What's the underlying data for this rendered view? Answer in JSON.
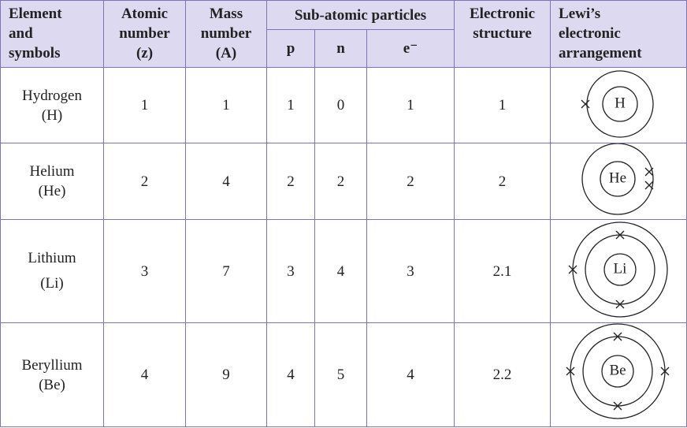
{
  "header": {
    "element": [
      "Element",
      "and",
      "symbols"
    ],
    "atomic": [
      "Atomic",
      "number",
      "(z)"
    ],
    "mass": [
      "Mass",
      "number",
      "(A)"
    ],
    "subatomic": "Sub-atomic particles",
    "p": "p",
    "n": "n",
    "e": "e⁻",
    "structure": [
      "Electronic",
      "structure"
    ],
    "lewis": [
      "Lewi’s",
      "electronic",
      "arrangement"
    ]
  },
  "table": {
    "rows": [
      {
        "element": "Hydrogen",
        "symbol": "(H)",
        "z": "1",
        "A": "1",
        "p": "1",
        "n": "0",
        "e": "1",
        "structure": "1",
        "lewis": "H"
      },
      {
        "element": "Helium",
        "symbol": "(He)",
        "z": "2",
        "A": "4",
        "p": "2",
        "n": "2",
        "e": "2",
        "structure": "2",
        "lewis": "He"
      },
      {
        "element": "Lithium",
        "symbol": "(Li)",
        "z": "3",
        "A": "7",
        "p": "3",
        "n": "4",
        "e": "3",
        "structure": "2.1",
        "lewis": "Li"
      },
      {
        "element": "Beryllium",
        "symbol": "(Be)",
        "z": "4",
        "A": "9",
        "p": "4",
        "n": "5",
        "e": "4",
        "structure": "2.2",
        "lewis": "Be"
      }
    ]
  }
}
